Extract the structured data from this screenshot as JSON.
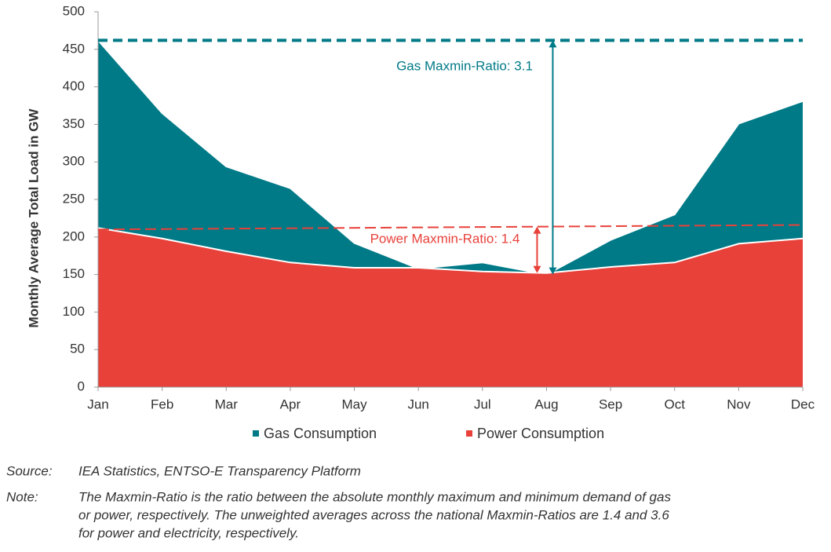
{
  "chart_data": {
    "type": "area",
    "y_label": "Monthly Average Total Load in GW",
    "categories": [
      "Jan",
      "Feb",
      "Mar",
      "Apr",
      "May",
      "Jun",
      "Jul",
      "Aug",
      "Sep",
      "Oct",
      "Nov",
      "Dec"
    ],
    "series": [
      {
        "name": "Gas Consumption",
        "color": "#007a87",
        "values": [
          462,
          365,
          294,
          265,
          192,
          158,
          166,
          150,
          196,
          230,
          351,
          381
        ]
      },
      {
        "name": "Power Consumption",
        "color": "#e8413a",
        "values": [
          212,
          198,
          181,
          166,
          159,
          159,
          154,
          152,
          160,
          166,
          191,
          198
        ]
      }
    ],
    "ylim": [
      0,
      500
    ],
    "yticks": [
      0,
      50,
      100,
      150,
      200,
      250,
      300,
      350,
      400,
      450,
      500
    ],
    "gas_max_line": {
      "value": 462,
      "color": "#007a87"
    },
    "power_trend_line": {
      "start": 210,
      "end": 216,
      "color": "#e8413a"
    },
    "annotations": [
      "Gas Maxmin-Ratio: 3.1",
      "Power Maxmin-Ratio: 1.4"
    ]
  },
  "footer": {
    "source_label": "Source:",
    "source": "IEA Statistics, ENTSO-E Transparency Platform",
    "note_label": "Note:",
    "note_lines": [
      "The Maxmin-Ratio is the ratio between the absolute monthly maximum and minimum demand of gas",
      "or power, respectively. The unweighted averages across the national Maxmin-Ratios are 1.4 and 3.6",
      "for power and electricity, respectively."
    ]
  }
}
